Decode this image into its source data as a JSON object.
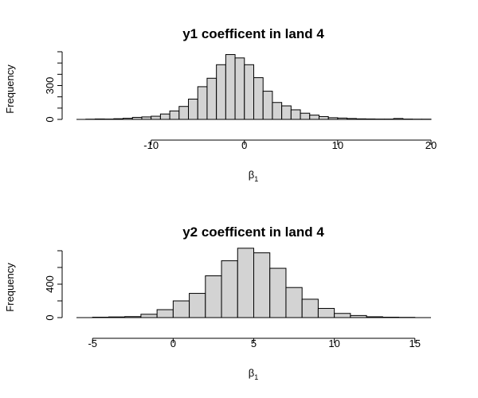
{
  "chart_data": [
    {
      "type": "bar",
      "title": "y1 coefficent in land  4",
      "xlabel": "β1",
      "ylabel": "Frequency",
      "bin_width": 1,
      "x_ticks": [
        -10,
        0,
        10,
        20
      ],
      "y_ticks": [
        0,
        300
      ],
      "y_minor_ticks": [
        100,
        200,
        400,
        500,
        600
      ],
      "xlim": [
        -18,
        20
      ],
      "ylim": [
        0,
        600
      ],
      "bins": [
        {
          "start": -17,
          "count": 2
        },
        {
          "start": -16,
          "count": 4
        },
        {
          "start": -15,
          "count": 3
        },
        {
          "start": -14,
          "count": 6
        },
        {
          "start": -13,
          "count": 10
        },
        {
          "start": -12,
          "count": 18
        },
        {
          "start": -11,
          "count": 22
        },
        {
          "start": -10,
          "count": 28
        },
        {
          "start": -9,
          "count": 48
        },
        {
          "start": -8,
          "count": 75
        },
        {
          "start": -7,
          "count": 115
        },
        {
          "start": -6,
          "count": 180
        },
        {
          "start": -5,
          "count": 290
        },
        {
          "start": -4,
          "count": 365
        },
        {
          "start": -3,
          "count": 485
        },
        {
          "start": -2,
          "count": 575
        },
        {
          "start": -1,
          "count": 545
        },
        {
          "start": 0,
          "count": 485
        },
        {
          "start": 1,
          "count": 370
        },
        {
          "start": 2,
          "count": 250
        },
        {
          "start": 3,
          "count": 150
        },
        {
          "start": 4,
          "count": 120
        },
        {
          "start": 5,
          "count": 85
        },
        {
          "start": 6,
          "count": 55
        },
        {
          "start": 7,
          "count": 38
        },
        {
          "start": 8,
          "count": 25
        },
        {
          "start": 9,
          "count": 15
        },
        {
          "start": 10,
          "count": 12
        },
        {
          "start": 11,
          "count": 8
        },
        {
          "start": 12,
          "count": 5
        },
        {
          "start": 13,
          "count": 4
        },
        {
          "start": 14,
          "count": 3
        },
        {
          "start": 15,
          "count": 3
        },
        {
          "start": 16,
          "count": 8
        },
        {
          "start": 17,
          "count": 3
        },
        {
          "start": 18,
          "count": 2
        },
        {
          "start": 19,
          "count": 2
        }
      ]
    },
    {
      "type": "bar",
      "title": "y2 coefficent in land  4",
      "xlabel": "β1",
      "ylabel": "Frequency",
      "bin_width": 1,
      "x_ticks": [
        -5,
        0,
        5,
        10,
        15
      ],
      "y_ticks": [
        0,
        400
      ],
      "y_minor_ticks": [
        200,
        600,
        800
      ],
      "xlim": [
        -6,
        16
      ],
      "ylim": [
        0,
        800
      ],
      "bins": [
        {
          "start": -5,
          "count": 5
        },
        {
          "start": -4,
          "count": 8
        },
        {
          "start": -3,
          "count": 12
        },
        {
          "start": -2,
          "count": 40
        },
        {
          "start": -1,
          "count": 95
        },
        {
          "start": 0,
          "count": 200
        },
        {
          "start": 1,
          "count": 290
        },
        {
          "start": 2,
          "count": 500
        },
        {
          "start": 3,
          "count": 680
        },
        {
          "start": 4,
          "count": 830
        },
        {
          "start": 5,
          "count": 775
        },
        {
          "start": 6,
          "count": 590
        },
        {
          "start": 7,
          "count": 360
        },
        {
          "start": 8,
          "count": 220
        },
        {
          "start": 9,
          "count": 110
        },
        {
          "start": 10,
          "count": 50
        },
        {
          "start": 11,
          "count": 25
        },
        {
          "start": 12,
          "count": 10
        },
        {
          "start": 13,
          "count": 5
        },
        {
          "start": 14,
          "count": 3
        }
      ]
    }
  ]
}
